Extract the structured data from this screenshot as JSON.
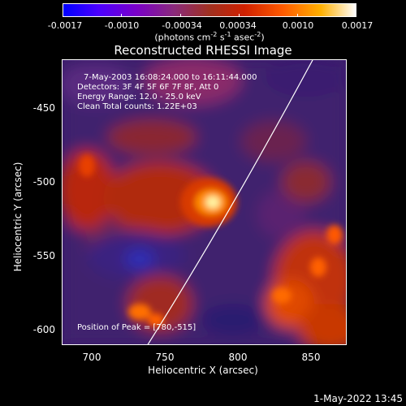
{
  "colorbar": {
    "ticks": [
      "-0.0017",
      "-0.0010",
      "-0.00034",
      "0.00034",
      "0.0010",
      "0.0017"
    ],
    "units_prefix": "(photons cm",
    "units_exp1": "-2",
    "units_mid1": " s",
    "units_exp2": "-1",
    "units_mid2": " asec",
    "units_exp3": "-2",
    "units_suffix": ")"
  },
  "title": "Reconstructed RHESSI Image",
  "info": {
    "time": "7-May-2003 16:08:24.000 to 16:11:44.000",
    "detectors": "Detectors: 3F 4F 5F 6F 7F 8F, Att 0",
    "energy": "Energy Range: 12.0 - 25.0 keV",
    "clean": "Clean     Total counts: 1.22E+03",
    "peak": "Position of Peak = [780,-515]"
  },
  "axes": {
    "xlabel": "Heliocentric X (arcsec)",
    "ylabel": "Heliocentric Y (arcsec)",
    "xticks": [
      "700",
      "750",
      "800",
      "850"
    ],
    "yticks": [
      "-450",
      "-500",
      "-550",
      "-600"
    ]
  },
  "timestamp": "1-May-2022 13:45"
}
